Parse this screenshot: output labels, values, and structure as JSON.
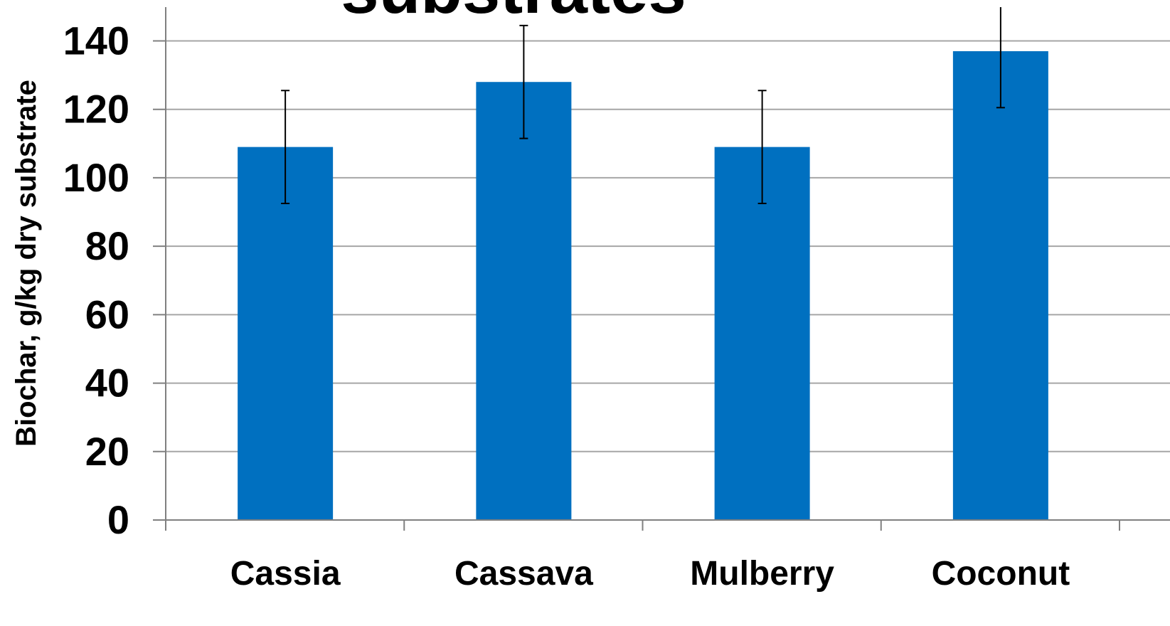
{
  "chart_data": {
    "type": "bar",
    "title": "substrates",
    "ylabel": "Biochar, g/kg dry substrate",
    "xlabel": "",
    "categories": [
      "Cassia",
      "Cassava",
      "Mulberry",
      "Coconut"
    ],
    "series": [
      {
        "values": [
          109,
          128,
          109,
          137
        ],
        "error": [
          16.5,
          16.5,
          16.5,
          16.5
        ]
      }
    ],
    "ylim": [
      0,
      150
    ],
    "yticks": [
      "0",
      "20",
      "40",
      "60",
      "80",
      "100",
      "120",
      "140"
    ],
    "ytick_values": [
      0,
      20,
      40,
      60,
      80,
      100,
      120,
      140
    ],
    "grid": true,
    "legend": "none",
    "colors": {
      "bar": "#0070C0",
      "grid": "#A6A6A6",
      "axis": "#808080",
      "errorbar": "#000000"
    }
  }
}
